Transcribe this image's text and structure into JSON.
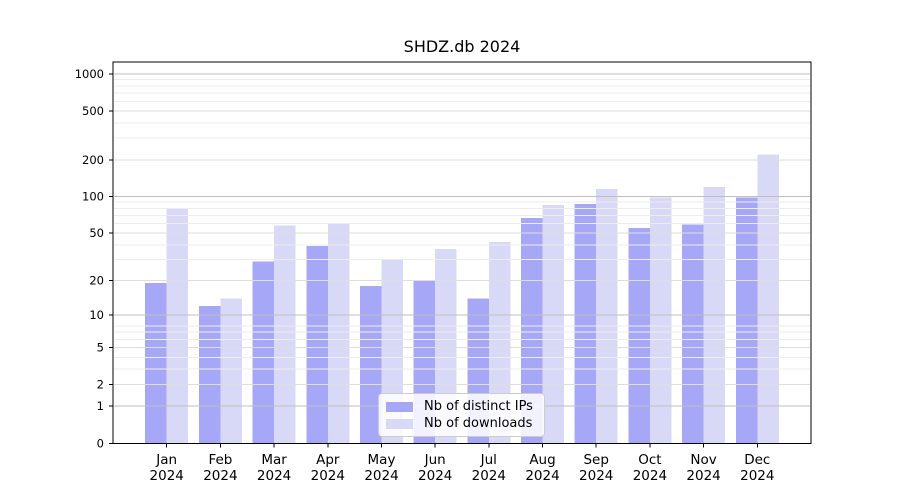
{
  "chart_data": {
    "type": "bar",
    "title": "SHDZ.db 2024",
    "categories": [
      "Jan",
      "Feb",
      "Mar",
      "Apr",
      "May",
      "Jun",
      "Jul",
      "Aug",
      "Sep",
      "Oct",
      "Nov",
      "Dec"
    ],
    "year": "2024",
    "series": [
      {
        "name": "Nb of distinct IPs",
        "color": "#a7a7f7",
        "values": [
          19,
          12,
          29,
          39,
          18,
          20,
          14,
          67,
          87,
          55,
          59,
          98
        ]
      },
      {
        "name": "Nb of downloads",
        "color": "#d8d8f7",
        "values": [
          80,
          14,
          58,
          60,
          30,
          37,
          42,
          85,
          115,
          98,
          120,
          220
        ]
      }
    ],
    "yticks": [
      0,
      1,
      2,
      5,
      10,
      20,
      50,
      100,
      200,
      500,
      1000
    ],
    "yscale": "log1p",
    "ylim": [
      0,
      1250
    ],
    "grid": "on",
    "legend_position": "inside lower center"
  },
  "colors": {
    "bar_dark": "#a7a7f7",
    "bar_light": "#d8d8f7",
    "grid_major": "#bfbfbf",
    "grid_mid": "#dedede",
    "grid_minor": "#ededed",
    "axis": "#000000",
    "text": "#000000"
  }
}
